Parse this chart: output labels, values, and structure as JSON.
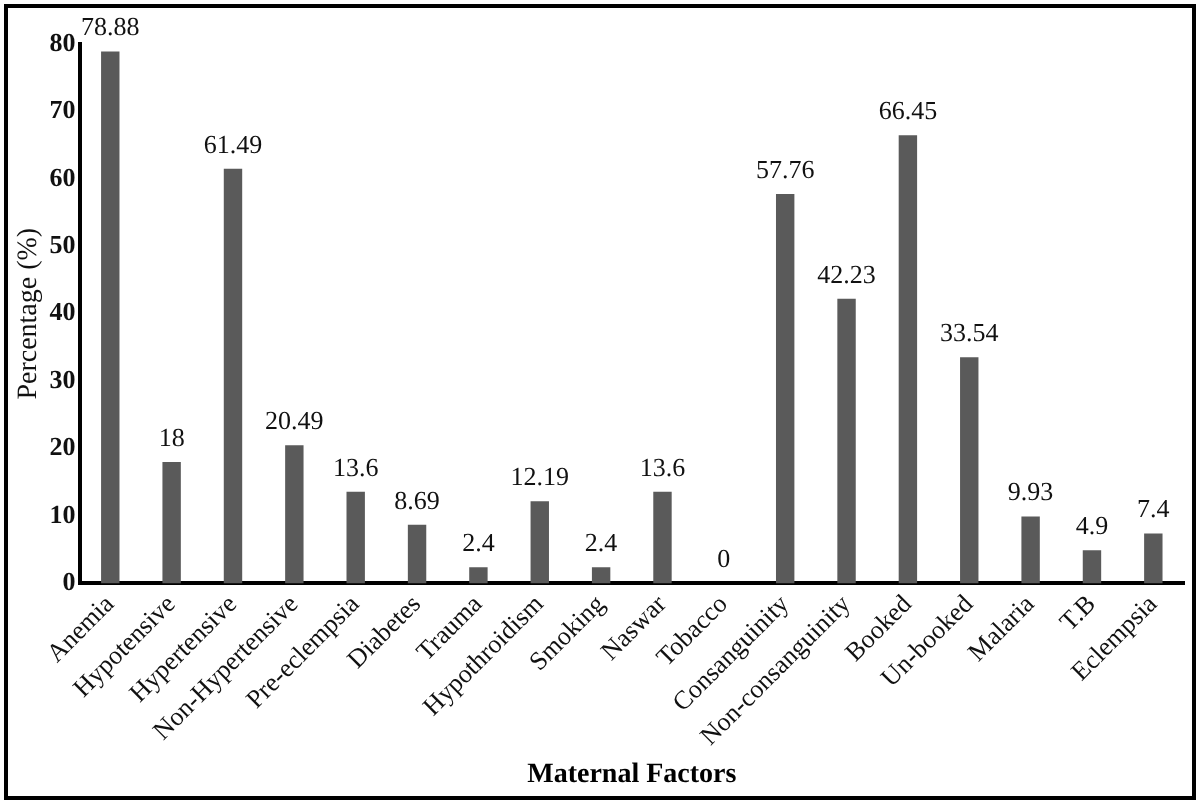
{
  "chart_data": {
    "type": "bar",
    "xlabel": "Maternal Factors",
    "ylabel": "Percentage (%)",
    "categories": [
      "Anemia",
      "Hypotensive",
      "Hypertensive",
      "Non-Hypertensive",
      "Pre-eclempsia",
      "Diabetes",
      "Trauma",
      "Hypothroidism",
      "Smoking",
      "Naswar",
      "Tobacco",
      "Consanguinity",
      "Non-consanguinity",
      "Booked",
      "Un-booked",
      "Malaria",
      "T.B",
      "Eclempsia"
    ],
    "values": [
      78.88,
      18,
      61.49,
      20.49,
      13.6,
      8.69,
      2.4,
      12.19,
      2.4,
      13.6,
      0,
      57.76,
      42.23,
      66.45,
      33.54,
      9.93,
      4.9,
      7.4
    ],
    "color": "#5a5a5a",
    "ylim": [
      0,
      80
    ],
    "yticks": [
      0,
      10,
      20,
      30,
      40,
      50,
      60,
      70,
      80
    ],
    "grid": false,
    "legend": false,
    "data_labels": true
  }
}
